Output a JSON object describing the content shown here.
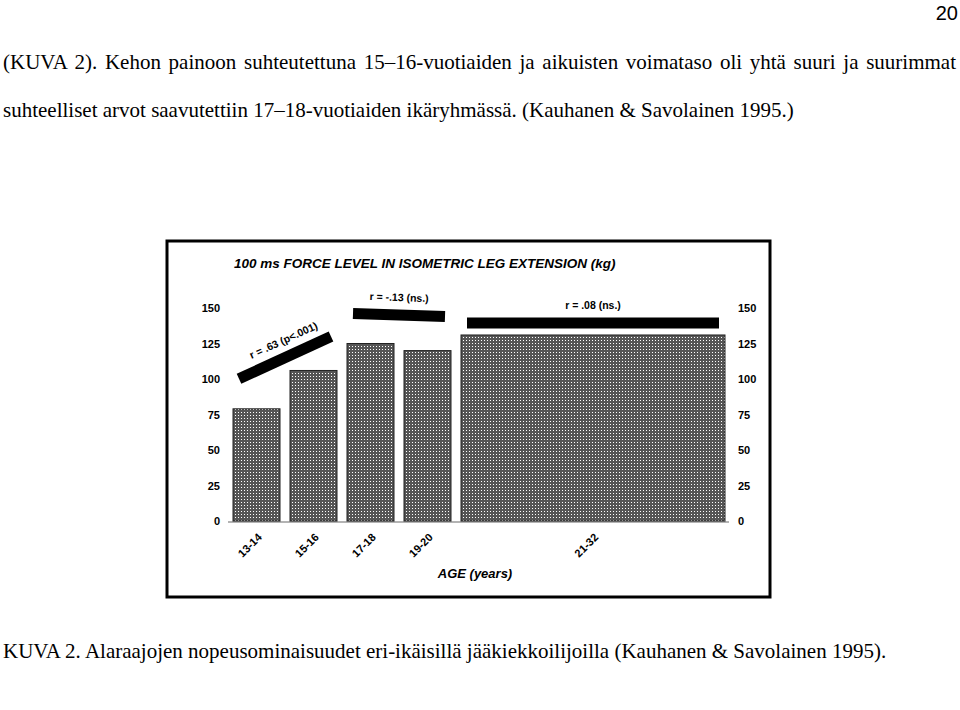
{
  "page": {
    "page_number": "20",
    "paragraph": "(KUVA 2). Kehon painoon suhteutettuna 15–16-vuotiaiden ja aikuisten voimataso oli yhtä suuri ja suurimmat suhteelliset arvot saavutettiin 17–18-vuotiaiden ikäryhmässä. (Kauhanen & Savolainen 1995.)",
    "caption": "KUVA 2. Alaraajojen nopeusominaisuudet eri-ikäisillä jääkiekkoilijoilla (Kauhanen & Savolainen 1995)."
  },
  "chart_data": {
    "type": "bar",
    "title": "100 ms FORCE LEVEL IN ISOMETRIC LEG EXTENSION (kg)",
    "x_label": "AGE (years)",
    "categories": [
      "13-14",
      "15-16",
      "17-18",
      "19-20",
      "21-32"
    ],
    "values": [
      79,
      106,
      125,
      120,
      131
    ],
    "color": "#555555",
    "ylim": [
      0,
      150
    ],
    "yticks": [
      0,
      25,
      50,
      75,
      100,
      125,
      150
    ],
    "annotations": [
      "r = .63 (p<.001)",
      "r = -.13 (ns.)",
      "r = .08 (ns.)"
    ]
  }
}
